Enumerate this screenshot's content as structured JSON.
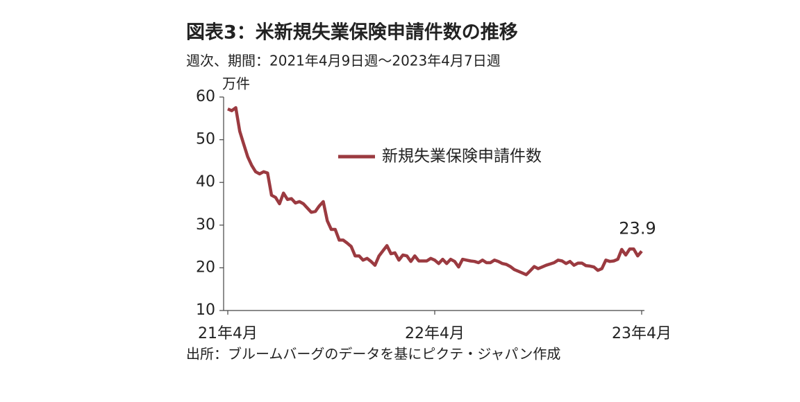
{
  "chart_data": {
    "type": "line",
    "title": "図表3：米新規失業保険申請件数の推移",
    "subtitle": "週次、期間：2021年4月9日週～2023年4月7日週",
    "y_label": "万件",
    "source": "出所：ブルームバーグのデータを基にピクテ・ジャパン作成",
    "categories": [
      "21年4月",
      null,
      null,
      null,
      null,
      null,
      null,
      null,
      null,
      null,
      null,
      null,
      null,
      null,
      null,
      null,
      null,
      null,
      null,
      null,
      null,
      null,
      null,
      null,
      null,
      null,
      null,
      null,
      null,
      null,
      null,
      null,
      null,
      null,
      null,
      null,
      null,
      null,
      null,
      null,
      null,
      null,
      null,
      null,
      null,
      null,
      null,
      null,
      null,
      null,
      null,
      null,
      "22年4月",
      null,
      null,
      null,
      null,
      null,
      null,
      null,
      null,
      null,
      null,
      null,
      null,
      null,
      null,
      null,
      null,
      null,
      null,
      null,
      null,
      null,
      null,
      null,
      null,
      null,
      null,
      null,
      null,
      null,
      null,
      null,
      null,
      null,
      null,
      null,
      null,
      null,
      null,
      null,
      null,
      null,
      null,
      null,
      null,
      null,
      null,
      null,
      null,
      null,
      null,
      null,
      "23年4月"
    ],
    "series": [
      {
        "name": "新規失業保険申請件数",
        "color": "#9b3a40",
        "values": [
          57.2,
          56.8,
          57.5,
          52,
          49,
          46,
          44,
          42.5,
          42,
          42.5,
          42.2,
          37,
          36.5,
          35,
          37.5,
          36,
          36.2,
          35.2,
          35.5,
          35,
          34,
          33,
          33.2,
          34.5,
          35.5,
          31,
          29,
          29,
          26.5,
          26.5,
          25.8,
          25,
          22.8,
          22.8,
          21.8,
          22.2,
          21.5,
          20.6,
          22.8,
          24,
          25.2,
          23.3,
          23.5,
          21.8,
          23,
          22.8,
          21.5,
          22.8,
          21.6,
          21.6,
          21.6,
          22.2,
          21.8,
          21,
          22,
          21,
          22,
          21.5,
          20.2,
          22,
          21.8,
          21.6,
          21.5,
          21.2,
          21.8,
          21.2,
          21.2,
          21.8,
          21.5,
          21,
          20.8,
          20.3,
          19.6,
          19.2,
          18.8,
          18.4,
          19.3,
          20.3,
          19.8,
          20.2,
          20.6,
          20.9,
          21.2,
          21.8,
          21.6,
          21,
          21.5,
          20.6,
          21.1,
          21.1,
          20.5,
          20.4,
          20.2,
          19.4,
          19.8,
          21.8,
          21.5,
          21.6,
          22,
          24.3,
          23,
          24.4,
          24.4,
          22.8,
          23.9
        ]
      }
    ],
    "labeled_point": 104,
    "ylim": [
      10,
      60
    ],
    "yticks": [
      10,
      20,
      30,
      40,
      50,
      60
    ],
    "grid": false,
    "legend": "top"
  }
}
